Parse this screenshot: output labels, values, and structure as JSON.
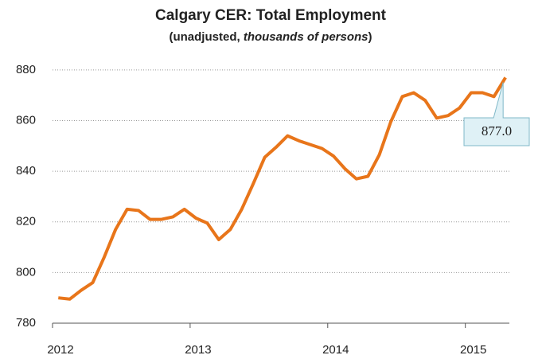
{
  "chart_data": {
    "type": "line",
    "title": "Calgary CER: Total Employment",
    "subtitle": [
      "(unadjusted, ",
      "thousands of persons",
      ")"
    ],
    "annotation": "877.0",
    "x": [
      2012.042,
      2012.125,
      2012.208,
      2012.292,
      2012.375,
      2012.458,
      2012.542,
      2012.625,
      2012.708,
      2012.792,
      2012.875,
      2012.958,
      2013.042,
      2013.125,
      2013.208,
      2013.292,
      2013.375,
      2013.458,
      2013.542,
      2013.625,
      2013.708,
      2013.792,
      2013.875,
      2013.958,
      2014.042,
      2014.125,
      2014.208,
      2014.292,
      2014.375,
      2014.458,
      2014.542,
      2014.625,
      2014.708,
      2014.792,
      2014.875,
      2014.958,
      2015.042,
      2015.125,
      2015.208,
      2015.292
    ],
    "series": [
      {
        "name": "Total Employment",
        "color": "#e8751a",
        "values": [
          790,
          789.5,
          793,
          796,
          806,
          817,
          825,
          824.5,
          821,
          821,
          822,
          825,
          821.5,
          819.5,
          813,
          817,
          825,
          835,
          845.5,
          849.5,
          854,
          852,
          850.5,
          849,
          846,
          841,
          837,
          838,
          846.5,
          859.5,
          869.5,
          871,
          868,
          861,
          862,
          865,
          871,
          871,
          869.5,
          877
        ]
      }
    ],
    "xlim": [
      2012,
      2015.32
    ],
    "xticks": [
      2012,
      2013,
      2014,
      2015
    ],
    "ylim": [
      780,
      885
    ],
    "yticks": [
      780,
      800,
      820,
      840,
      860,
      880
    ],
    "grid": true
  }
}
